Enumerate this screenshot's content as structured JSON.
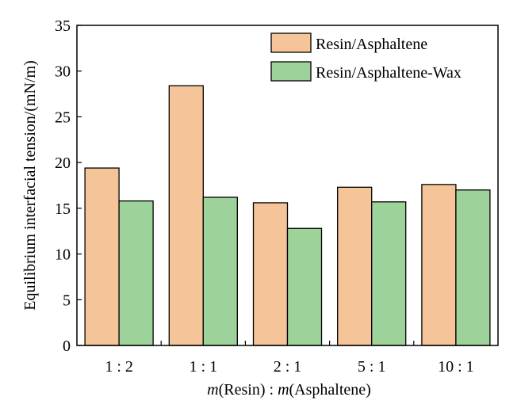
{
  "chart_data": {
    "type": "bar",
    "categories": [
      "1 : 2",
      "1 : 1",
      "2 : 1",
      "5 : 1",
      "10 : 1"
    ],
    "series": [
      {
        "name": "Resin/Asphaltene",
        "values": [
          19.4,
          28.4,
          15.6,
          17.3,
          17.6
        ],
        "color": "#f5c498"
      },
      {
        "name": "Resin/Asphaltene-Wax",
        "values": [
          15.8,
          16.2,
          12.8,
          15.7,
          17.0
        ],
        "color": "#9dd39a"
      }
    ],
    "ylabel": "Equilibrium interfacial tension/(mN/m)",
    "xlabel": {
      "italic1": "m",
      "mid": "(Resin) : ",
      "italic2": "m",
      "tail": "(Asphaltene)"
    },
    "ylim": [
      0,
      35
    ],
    "yticks": [
      0,
      5,
      10,
      15,
      20,
      25,
      30,
      35
    ],
    "legend_position": "top-right",
    "grid": false
  }
}
